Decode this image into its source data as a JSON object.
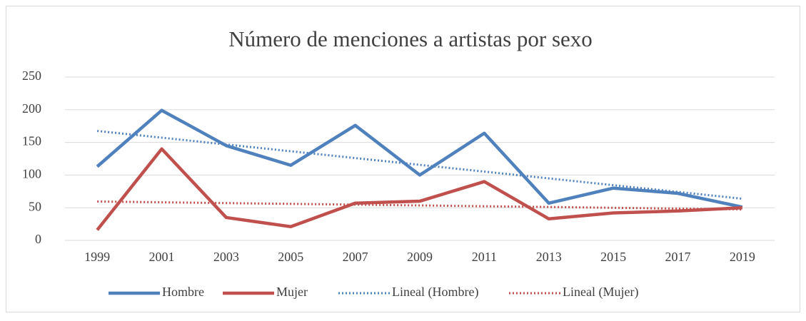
{
  "chart_data": {
    "type": "line",
    "title": "Número de menciones a artistas por sexo",
    "categories": [
      "1999",
      "2001",
      "2003",
      "2005",
      "2007",
      "2009",
      "2011",
      "2013",
      "2015",
      "2017",
      "2019"
    ],
    "series": [
      {
        "name": "Hombre",
        "color": "#4f81bd",
        "style": "solid",
        "values": [
          113,
          199,
          145,
          115,
          176,
          100,
          164,
          57,
          80,
          72,
          51
        ]
      },
      {
        "name": "Mujer",
        "color": "#c0504d",
        "style": "solid",
        "values": [
          16,
          140,
          35,
          21,
          57,
          60,
          90,
          33,
          42,
          45,
          50
        ]
      },
      {
        "name": "Lineal (Hombre)",
        "color": "#4f81bd",
        "style": "dotted",
        "values": [
          167.5,
          157.2,
          146.8,
          136.4,
          126.0,
          115.6,
          105.3,
          94.9,
          84.5,
          74.2,
          63.8
        ]
      },
      {
        "name": "Lineal (Mujer)",
        "color": "#c0504d",
        "style": "dotted",
        "values": [
          59.5,
          58.3,
          57.1,
          55.9,
          54.7,
          53.5,
          52.3,
          51.1,
          49.9,
          48.7,
          47.5
        ]
      }
    ],
    "ylim": [
      0,
      250
    ],
    "yticks": [
      0,
      50,
      100,
      150,
      200,
      250
    ],
    "grid": true,
    "legend": "bottom"
  }
}
